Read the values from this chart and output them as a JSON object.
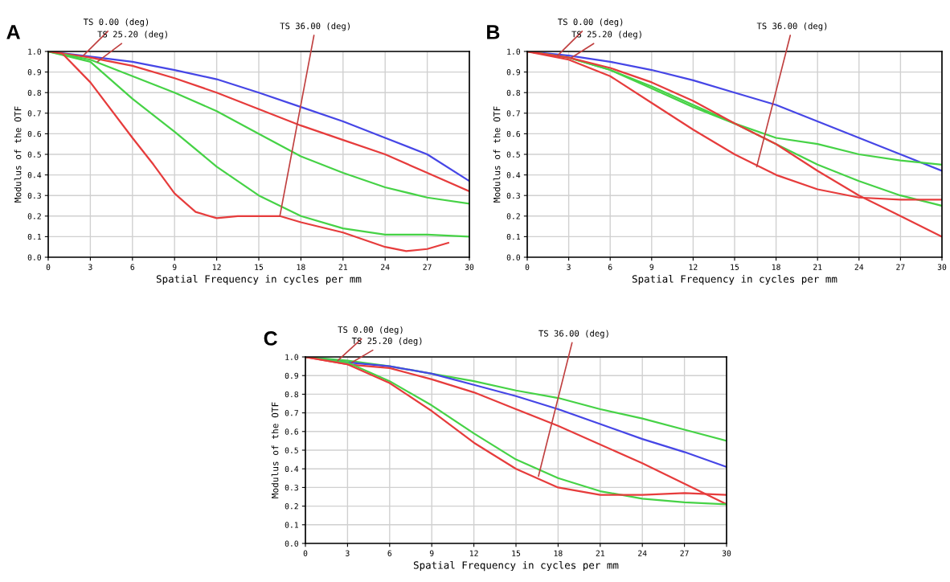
{
  "chart_data": [
    {
      "type": "line",
      "title": "A",
      "xlabel": "Spatial Frequency in cycles per mm",
      "ylabel": "Modulus of the OTF",
      "x": [
        0,
        3,
        6,
        9,
        12,
        15,
        18,
        21,
        24,
        27,
        30
      ],
      "xlim": [
        0,
        30
      ],
      "ylim": [
        0,
        1
      ],
      "xticks": [
        0,
        3,
        6,
        9,
        12,
        15,
        18,
        21,
        24,
        27,
        30
      ],
      "yticks": [
        {
          "value": 0,
          "label": "0.0"
        },
        {
          "value": 0.1,
          "label": "0.1"
        },
        {
          "value": 0.2,
          "label": "0.2"
        },
        {
          "value": 0.3,
          "label": "0.3"
        },
        {
          "value": 0.4,
          "label": "0.4"
        },
        {
          "value": 0.5,
          "label": "0.5"
        },
        {
          "value": 0.6,
          "label": "0.6"
        },
        {
          "value": 0.7,
          "label": "0.7"
        },
        {
          "value": 0.8,
          "label": "0.8"
        },
        {
          "value": 0.9,
          "label": "0.9"
        },
        {
          "value": 1,
          "label": "1.0"
        }
      ],
      "grid": true,
      "marker": "none",
      "line_style": "solid",
      "series": [
        {
          "color": "#4646e6",
          "values": [
            1.0,
            0.975,
            0.95,
            0.91,
            0.865,
            0.8,
            0.73,
            0.66,
            0.58,
            0.5,
            0.37
          ]
        },
        {
          "color": "#e63c3c",
          "values": [
            1.0,
            0.97,
            0.93,
            0.87,
            0.8,
            0.72,
            0.64,
            0.57,
            0.5,
            0.41,
            0.32
          ]
        },
        {
          "color": "#46d246",
          "values": [
            1.0,
            0.96,
            0.88,
            0.8,
            0.71,
            0.6,
            0.49,
            0.41,
            0.34,
            0.29,
            0.26
          ]
        },
        {
          "color": "#46d246",
          "values": [
            1.0,
            0.95,
            0.77,
            0.61,
            0.44,
            0.3,
            0.2,
            0.14,
            0.11,
            0.11,
            0.1
          ]
        },
        {
          "color": "#e63c3c",
          "x": [
            0,
            1,
            3,
            6,
            7.5,
            9,
            10.5,
            12,
            13.5,
            15,
            16.5,
            18,
            21,
            24,
            25.5,
            27,
            28.5
          ],
          "values": [
            1.0,
            0.99,
            0.85,
            0.58,
            0.45,
            0.31,
            0.22,
            0.19,
            0.2,
            0.2,
            0.2,
            0.17,
            0.12,
            0.05,
            0.03,
            0.04,
            0.07
          ]
        }
      ],
      "annotations": [
        {
          "text": "TS 0.00 (deg)",
          "x": 2.5,
          "y": 0.98
        },
        {
          "text": "TS 25.20 (deg)",
          "x": 3.5,
          "y": 0.95
        },
        {
          "text": "TS 36.00 (deg)",
          "x": 16.5,
          "y": 0.2
        }
      ]
    },
    {
      "type": "line",
      "title": "B",
      "xlabel": "Spatial Frequency in cycles per mm",
      "ylabel": "Modulus of the OTF",
      "x": [
        0,
        3,
        6,
        9,
        12,
        15,
        18,
        21,
        24,
        27,
        30
      ],
      "xlim": [
        0,
        30
      ],
      "ylim": [
        0,
        1
      ],
      "xticks": [
        0,
        3,
        6,
        9,
        12,
        15,
        18,
        21,
        24,
        27,
        30
      ],
      "yticks": [
        {
          "value": 0,
          "label": "0.0"
        },
        {
          "value": 0.1,
          "label": "0.1"
        },
        {
          "value": 0.2,
          "label": "0.2"
        },
        {
          "value": 0.3,
          "label": "0.3"
        },
        {
          "value": 0.4,
          "label": "0.4"
        },
        {
          "value": 0.5,
          "label": "0.5"
        },
        {
          "value": 0.6,
          "label": "0.6"
        },
        {
          "value": 0.7,
          "label": "0.7"
        },
        {
          "value": 0.8,
          "label": "0.8"
        },
        {
          "value": 0.9,
          "label": "0.9"
        },
        {
          "value": 1,
          "label": "1.0"
        }
      ],
      "grid": true,
      "marker": "none",
      "line_style": "solid",
      "series": [
        {
          "color": "#4646e6",
          "values": [
            1.0,
            0.98,
            0.95,
            0.91,
            0.86,
            0.8,
            0.74,
            0.66,
            0.58,
            0.5,
            0.42
          ]
        },
        {
          "color": "#46d246",
          "values": [
            1.0,
            0.97,
            0.91,
            0.83,
            0.74,
            0.65,
            0.58,
            0.55,
            0.5,
            0.47,
            0.45
          ]
        },
        {
          "color": "#46d246",
          "values": [
            1.0,
            0.97,
            0.91,
            0.82,
            0.73,
            0.65,
            0.55,
            0.45,
            0.37,
            0.3,
            0.25
          ]
        },
        {
          "color": "#e63c3c",
          "values": [
            1.0,
            0.96,
            0.88,
            0.75,
            0.62,
            0.5,
            0.4,
            0.33,
            0.29,
            0.28,
            0.28
          ]
        },
        {
          "color": "#e63c3c",
          "values": [
            1.0,
            0.97,
            0.92,
            0.85,
            0.76,
            0.65,
            0.55,
            0.42,
            0.3,
            0.2,
            0.1
          ]
        }
      ],
      "annotations": [
        {
          "text": "TS 0.00 (deg)",
          "x": 2.2,
          "y": 0.98
        },
        {
          "text": "TS 25.20 (deg)",
          "x": 3.2,
          "y": 0.97
        },
        {
          "text": "TS 36.00 (deg)",
          "x": 16.6,
          "y": 0.44
        }
      ]
    },
    {
      "type": "line",
      "title": "C",
      "xlabel": "Spatial Frequency in cycles per mm",
      "ylabel": "Modulus of the OTF",
      "x": [
        0,
        3,
        6,
        9,
        12,
        15,
        18,
        21,
        24,
        27,
        30
      ],
      "xlim": [
        0,
        30
      ],
      "ylim": [
        0,
        1
      ],
      "xticks": [
        0,
        3,
        6,
        9,
        12,
        15,
        18,
        21,
        24,
        27,
        30
      ],
      "yticks": [
        {
          "value": 0,
          "label": "0.0"
        },
        {
          "value": 0.1,
          "label": "0.1"
        },
        {
          "value": 0.2,
          "label": "0.2"
        },
        {
          "value": 0.3,
          "label": "0.3"
        },
        {
          "value": 0.4,
          "label": "0.4"
        },
        {
          "value": 0.5,
          "label": "0.5"
        },
        {
          "value": 0.6,
          "label": "0.6"
        },
        {
          "value": 0.7,
          "label": "0.7"
        },
        {
          "value": 0.8,
          "label": "0.8"
        },
        {
          "value": 0.9,
          "label": "0.9"
        },
        {
          "value": 1,
          "label": "1.0"
        }
      ],
      "grid": true,
      "marker": "none",
      "line_style": "solid",
      "series": [
        {
          "color": "#46d246",
          "values": [
            1.0,
            0.98,
            0.95,
            0.91,
            0.87,
            0.82,
            0.78,
            0.72,
            0.67,
            0.61,
            0.55
          ]
        },
        {
          "color": "#4646e6",
          "values": [
            1.0,
            0.97,
            0.95,
            0.91,
            0.85,
            0.79,
            0.72,
            0.64,
            0.56,
            0.49,
            0.41
          ]
        },
        {
          "color": "#e63c3c",
          "values": [
            1.0,
            0.96,
            0.94,
            0.88,
            0.81,
            0.72,
            0.63,
            0.53,
            0.43,
            0.32,
            0.21
          ]
        },
        {
          "color": "#46d246",
          "values": [
            1.0,
            0.97,
            0.87,
            0.74,
            0.59,
            0.45,
            0.35,
            0.28,
            0.24,
            0.22,
            0.21
          ]
        },
        {
          "color": "#e63c3c",
          "values": [
            1.0,
            0.96,
            0.86,
            0.71,
            0.54,
            0.4,
            0.3,
            0.26,
            0.26,
            0.27,
            0.26
          ]
        }
      ],
      "annotations": [
        {
          "text": "TS 0.00 (deg)",
          "x": 2.3,
          "y": 0.98
        },
        {
          "text": "TS 25.20 (deg)",
          "x": 3.3,
          "y": 0.97
        },
        {
          "text": "TS 36.00 (deg)",
          "x": 16.6,
          "y": 0.36
        }
      ]
    }
  ]
}
